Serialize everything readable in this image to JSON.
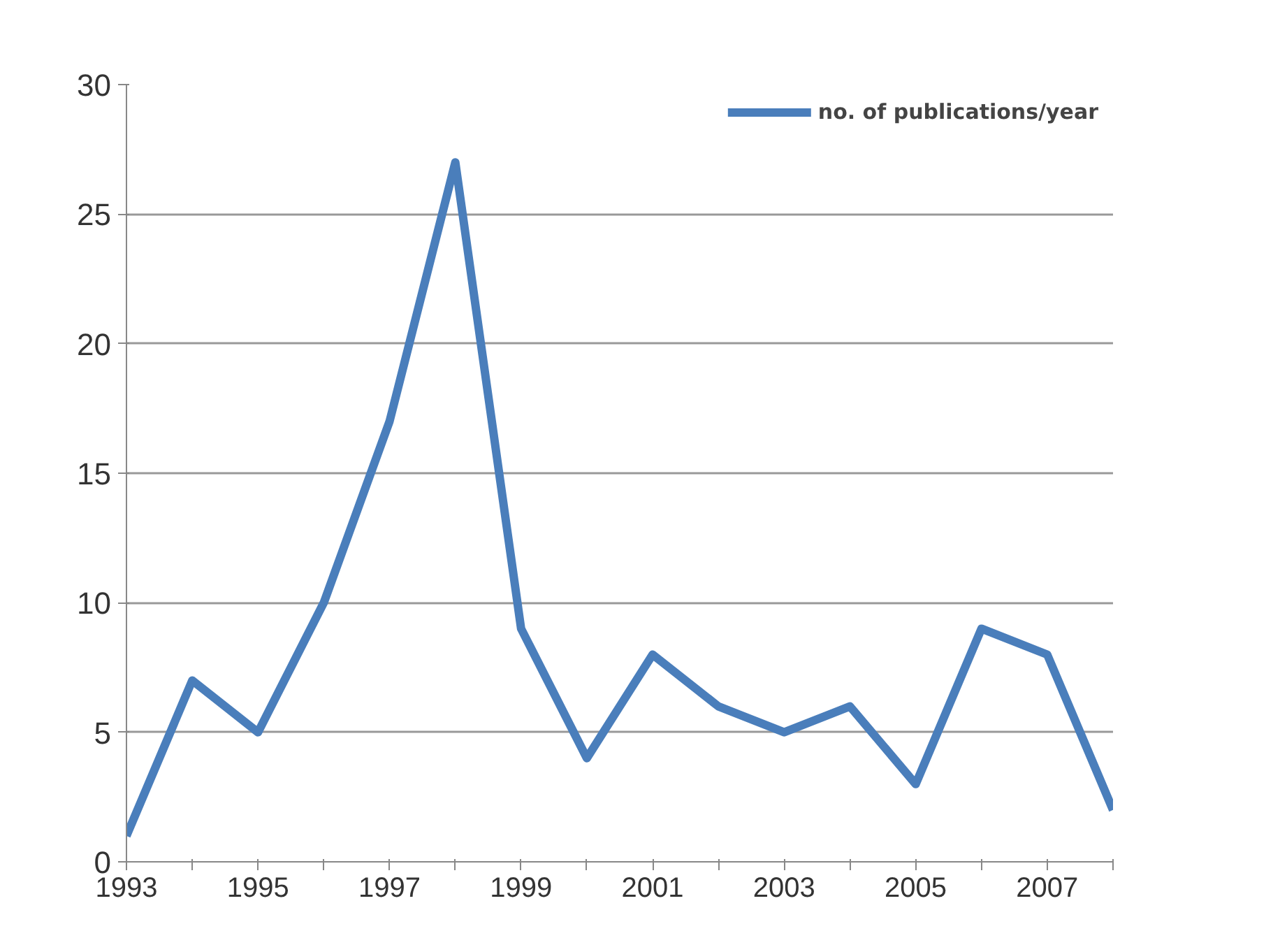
{
  "chart_data": {
    "type": "line",
    "x": [
      1993,
      1994,
      1995,
      1996,
      1997,
      1998,
      1999,
      2000,
      2001,
      2002,
      2003,
      2004,
      2005,
      2006,
      2007,
      2008
    ],
    "series": [
      {
        "name": "no. of publications/year",
        "color": "#4a7ebb",
        "values": [
          1,
          7,
          5,
          10,
          17,
          27,
          9,
          4,
          8,
          6,
          5,
          6,
          3,
          9,
          8,
          2
        ]
      }
    ],
    "xlim": [
      1993,
      2008
    ],
    "xticks": [
      1993,
      {
        "value": 1994,
        "label": null
      },
      1995,
      {
        "value": 1996,
        "label": null
      },
      1997,
      {
        "value": 1998,
        "label": null
      },
      1999,
      {
        "value": 2000,
        "label": null
      },
      2001,
      {
        "value": 2002,
        "label": null
      },
      2003,
      {
        "value": 2004,
        "label": null
      },
      2005,
      {
        "value": 2006,
        "label": null
      },
      2007,
      {
        "value": 2008,
        "label": null
      }
    ],
    "ylim": [
      0,
      30
    ],
    "yticks": [
      0,
      5,
      10,
      15,
      20,
      25,
      30
    ],
    "grid": "y",
    "legend": "top right",
    "marker": "none",
    "line_style": "solid"
  }
}
